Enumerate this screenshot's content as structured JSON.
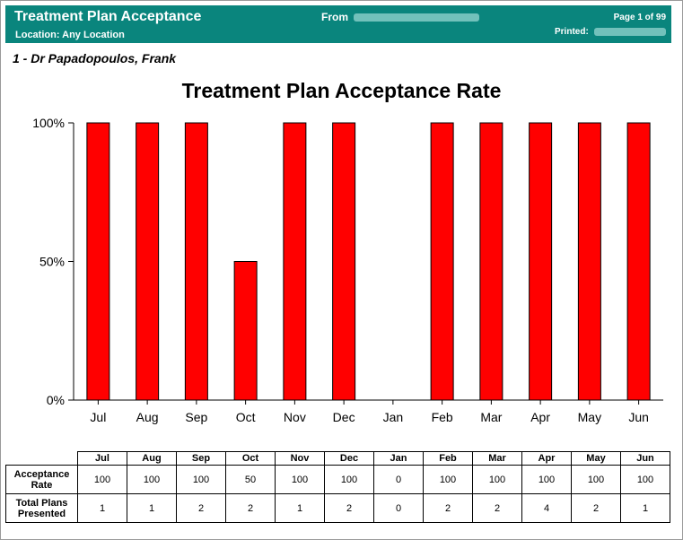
{
  "header": {
    "title": "Treatment Plan Acceptance",
    "location": "Location: Any Location",
    "from_label": "From",
    "page": "Page 1 of 99",
    "printed_label": "Printed:",
    "bg_color": "#0a857d"
  },
  "provider": "1 - Dr Papadopoulos,   Frank",
  "chart_data": {
    "type": "bar",
    "title": "Treatment Plan Acceptance Rate",
    "categories": [
      "Jul",
      "Aug",
      "Sep",
      "Oct",
      "Nov",
      "Dec",
      "Jan",
      "Feb",
      "Mar",
      "Apr",
      "May",
      "Jun"
    ],
    "values": [
      100,
      100,
      100,
      50,
      100,
      100,
      0,
      100,
      100,
      100,
      100,
      100
    ],
    "ylim": [
      0,
      100
    ],
    "yticks": [
      0,
      50,
      100
    ],
    "ytick_labels": [
      "0%",
      "50%",
      "100%"
    ],
    "xlabel": "",
    "ylabel": "",
    "bar_color": "#ff0000",
    "grid": false
  },
  "table": {
    "columns": [
      "Jul",
      "Aug",
      "Sep",
      "Oct",
      "Nov",
      "Dec",
      "Jan",
      "Feb",
      "Mar",
      "Apr",
      "May",
      "Jun"
    ],
    "rows": [
      {
        "label": "Acceptance Rate",
        "values": [
          "100",
          "100",
          "100",
          "50",
          "100",
          "100",
          "0",
          "100",
          "100",
          "100",
          "100",
          "100"
        ]
      },
      {
        "label": "Total Plans Presented",
        "values": [
          "1",
          "1",
          "2",
          "2",
          "1",
          "2",
          "0",
          "2",
          "2",
          "4",
          "2",
          "1"
        ]
      }
    ]
  }
}
